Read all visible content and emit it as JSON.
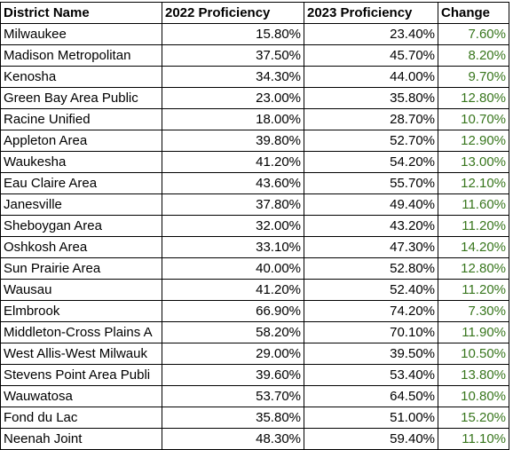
{
  "colors": {
    "change_text": "#38761d",
    "grid_line": "#000000",
    "text": "#000000"
  },
  "headers": {
    "district": "District Name",
    "p2022": "2022 Proficiency",
    "p2023": "2023 Proficiency",
    "change": "Change"
  },
  "rows": [
    {
      "district": "Milwaukee",
      "p2022": "15.80%",
      "p2023": "23.40%",
      "change": "7.60%"
    },
    {
      "district": "Madison Metropolitan",
      "p2022": "37.50%",
      "p2023": "45.70%",
      "change": "8.20%"
    },
    {
      "district": "Kenosha",
      "p2022": "34.30%",
      "p2023": "44.00%",
      "change": "9.70%"
    },
    {
      "district": "Green Bay Area Public",
      "p2022": "23.00%",
      "p2023": "35.80%",
      "change": "12.80%"
    },
    {
      "district": "Racine Unified",
      "p2022": "18.00%",
      "p2023": "28.70%",
      "change": "10.70%"
    },
    {
      "district": "Appleton Area",
      "p2022": "39.80%",
      "p2023": "52.70%",
      "change": "12.90%"
    },
    {
      "district": "Waukesha",
      "p2022": "41.20%",
      "p2023": "54.20%",
      "change": "13.00%"
    },
    {
      "district": "Eau Claire Area",
      "p2022": "43.60%",
      "p2023": "55.70%",
      "change": "12.10%"
    },
    {
      "district": "Janesville",
      "p2022": "37.80%",
      "p2023": "49.40%",
      "change": "11.60%"
    },
    {
      "district": "Sheboygan Area",
      "p2022": "32.00%",
      "p2023": "43.20%",
      "change": "11.20%"
    },
    {
      "district": "Oshkosh Area",
      "p2022": "33.10%",
      "p2023": "47.30%",
      "change": "14.20%"
    },
    {
      "district": "Sun Prairie Area",
      "p2022": "40.00%",
      "p2023": "52.80%",
      "change": "12.80%"
    },
    {
      "district": "Wausau",
      "p2022": "41.20%",
      "p2023": "52.40%",
      "change": "11.20%"
    },
    {
      "district": "Elmbrook",
      "p2022": "66.90%",
      "p2023": "74.20%",
      "change": "7.30%"
    },
    {
      "district": "Middleton-Cross Plains A",
      "p2022": "58.20%",
      "p2023": "70.10%",
      "change": "11.90%"
    },
    {
      "district": "West Allis-West Milwauk",
      "p2022": "29.00%",
      "p2023": "39.50%",
      "change": "10.50%"
    },
    {
      "district": "Stevens Point Area Publi",
      "p2022": "39.60%",
      "p2023": "53.40%",
      "change": "13.80%"
    },
    {
      "district": "Wauwatosa",
      "p2022": "53.70%",
      "p2023": "64.50%",
      "change": "10.80%"
    },
    {
      "district": "Fond du Lac",
      "p2022": "35.80%",
      "p2023": "51.00%",
      "change": "15.20%"
    },
    {
      "district": "Neenah Joint",
      "p2022": "48.30%",
      "p2023": "59.40%",
      "change": "11.10%"
    }
  ]
}
